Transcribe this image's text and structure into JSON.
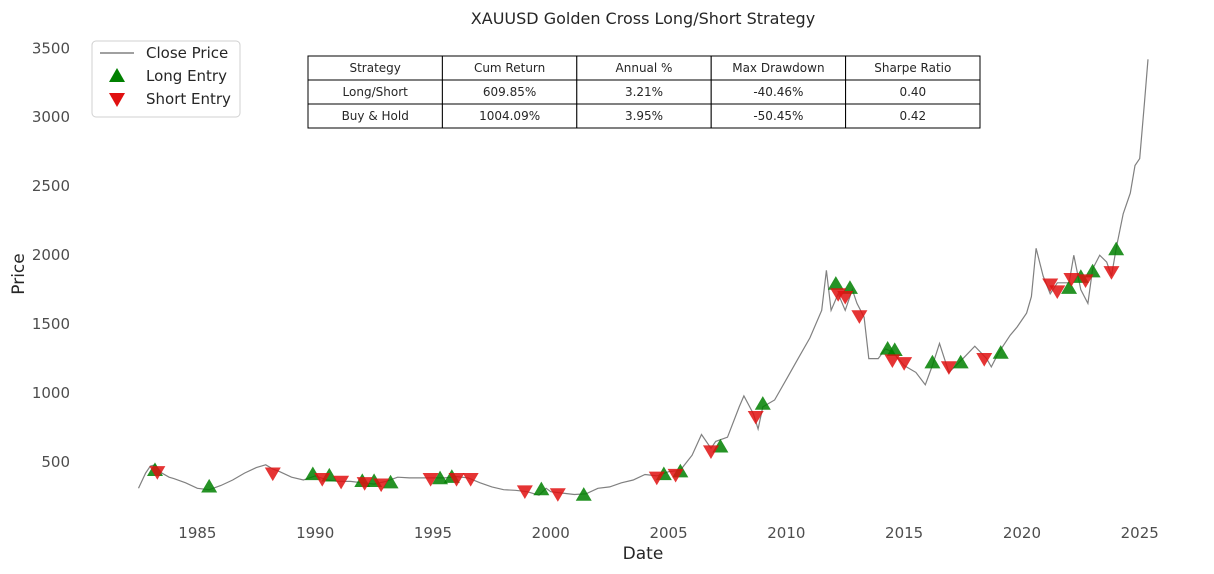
{
  "chart_data": {
    "type": "line",
    "title": "XAUUSD Golden Cross Long/Short Strategy",
    "xlabel": "Date",
    "ylabel": "Price",
    "xlim": [
      1981.8,
      2026.2
    ],
    "ylim": [
      80,
      3560
    ],
    "x_ticks": [
      1985,
      1990,
      1995,
      2000,
      2005,
      2010,
      2015,
      2020,
      2025
    ],
    "y_ticks": [
      500,
      1000,
      1500,
      2000,
      2500,
      3000,
      3500
    ],
    "grid": false,
    "legend": {
      "placement": "top-left",
      "entries": [
        {
          "label": "Close Price",
          "marker": "line",
          "color": "#808080"
        },
        {
          "label": "Long Entry",
          "marker": "triangle-up",
          "color": "#008000"
        },
        {
          "label": "Short Entry",
          "marker": "triangle-down",
          "color": "#e01010"
        }
      ]
    },
    "series": [
      {
        "name": "Close Price",
        "color": "#808080",
        "points": [
          [
            1982.5,
            310
          ],
          [
            1982.8,
            420
          ],
          [
            1983.0,
            470
          ],
          [
            1983.2,
            480
          ],
          [
            1983.5,
            420
          ],
          [
            1983.8,
            390
          ],
          [
            1984.0,
            380
          ],
          [
            1984.5,
            350
          ],
          [
            1985.0,
            310
          ],
          [
            1985.5,
            300
          ],
          [
            1986.0,
            330
          ],
          [
            1986.5,
            370
          ],
          [
            1987.0,
            420
          ],
          [
            1987.5,
            460
          ],
          [
            1987.9,
            480
          ],
          [
            1988.2,
            450
          ],
          [
            1988.5,
            430
          ],
          [
            1989.0,
            390
          ],
          [
            1989.5,
            370
          ],
          [
            1990.0,
            400
          ],
          [
            1990.5,
            370
          ],
          [
            1991.0,
            360
          ],
          [
            1991.5,
            360
          ],
          [
            1992.0,
            350
          ],
          [
            1992.5,
            340
          ],
          [
            1993.0,
            360
          ],
          [
            1993.5,
            390
          ],
          [
            1994.0,
            385
          ],
          [
            1994.5,
            385
          ],
          [
            1995.0,
            385
          ],
          [
            1995.5,
            385
          ],
          [
            1996.0,
            395
          ],
          [
            1996.5,
            385
          ],
          [
            1997.0,
            350
          ],
          [
            1997.5,
            320
          ],
          [
            1998.0,
            300
          ],
          [
            1998.5,
            295
          ],
          [
            1999.0,
            285
          ],
          [
            1999.5,
            260
          ],
          [
            1999.8,
            310
          ],
          [
            2000.0,
            285
          ],
          [
            2000.5,
            275
          ],
          [
            2001.0,
            265
          ],
          [
            2001.5,
            270
          ],
          [
            2002.0,
            310
          ],
          [
            2002.5,
            320
          ],
          [
            2003.0,
            350
          ],
          [
            2003.5,
            370
          ],
          [
            2004.0,
            410
          ],
          [
            2004.5,
            400
          ],
          [
            2005.0,
            430
          ],
          [
            2005.5,
            440
          ],
          [
            2006.0,
            550
          ],
          [
            2006.4,
            700
          ],
          [
            2006.8,
            600
          ],
          [
            2007.0,
            650
          ],
          [
            2007.5,
            680
          ],
          [
            2008.0,
            900
          ],
          [
            2008.2,
            980
          ],
          [
            2008.6,
            850
          ],
          [
            2008.8,
            740
          ],
          [
            2009.0,
            900
          ],
          [
            2009.5,
            950
          ],
          [
            2010.0,
            1100
          ],
          [
            2010.5,
            1250
          ],
          [
            2011.0,
            1400
          ],
          [
            2011.5,
            1600
          ],
          [
            2011.7,
            1890
          ],
          [
            2011.9,
            1600
          ],
          [
            2012.2,
            1720
          ],
          [
            2012.5,
            1600
          ],
          [
            2012.8,
            1750
          ],
          [
            2013.0,
            1650
          ],
          [
            2013.3,
            1550
          ],
          [
            2013.5,
            1250
          ],
          [
            2013.9,
            1250
          ],
          [
            2014.2,
            1320
          ],
          [
            2014.5,
            1300
          ],
          [
            2015.0,
            1200
          ],
          [
            2015.5,
            1150
          ],
          [
            2015.9,
            1060
          ],
          [
            2016.2,
            1200
          ],
          [
            2016.5,
            1360
          ],
          [
            2016.9,
            1150
          ],
          [
            2017.5,
            1250
          ],
          [
            2018.0,
            1340
          ],
          [
            2018.5,
            1250
          ],
          [
            2018.7,
            1190
          ],
          [
            2019.0,
            1290
          ],
          [
            2019.5,
            1420
          ],
          [
            2019.8,
            1480
          ],
          [
            2020.2,
            1580
          ],
          [
            2020.4,
            1700
          ],
          [
            2020.6,
            2050
          ],
          [
            2020.9,
            1850
          ],
          [
            2021.2,
            1720
          ],
          [
            2021.5,
            1800
          ],
          [
            2022.0,
            1800
          ],
          [
            2022.2,
            2000
          ],
          [
            2022.5,
            1750
          ],
          [
            2022.8,
            1650
          ],
          [
            2023.0,
            1900
          ],
          [
            2023.3,
            2000
          ],
          [
            2023.6,
            1950
          ],
          [
            2023.8,
            1850
          ],
          [
            2024.0,
            2050
          ],
          [
            2024.3,
            2300
          ],
          [
            2024.6,
            2450
          ],
          [
            2024.8,
            2650
          ],
          [
            2025.0,
            2700
          ],
          [
            2025.2,
            3100
          ],
          [
            2025.35,
            3420
          ]
        ]
      }
    ],
    "long_entries": [
      [
        1983.2,
        440
      ],
      [
        1985.5,
        320
      ],
      [
        1989.9,
        410
      ],
      [
        1990.6,
        400
      ],
      [
        1992.0,
        360
      ],
      [
        1992.5,
        360
      ],
      [
        1993.2,
        350
      ],
      [
        1995.3,
        380
      ],
      [
        1995.8,
        390
      ],
      [
        1999.6,
        300
      ],
      [
        2001.4,
        260
      ],
      [
        2004.8,
        410
      ],
      [
        2005.5,
        430
      ],
      [
        2007.2,
        610
      ],
      [
        2009.0,
        920
      ],
      [
        2012.1,
        1790
      ],
      [
        2012.7,
        1760
      ],
      [
        2014.3,
        1320
      ],
      [
        2014.6,
        1310
      ],
      [
        2016.2,
        1220
      ],
      [
        2017.4,
        1220
      ],
      [
        2019.1,
        1290
      ],
      [
        2022.0,
        1760
      ],
      [
        2022.5,
        1840
      ],
      [
        2023.0,
        1880
      ],
      [
        2024.0,
        2040
      ]
    ],
    "short_entries": [
      [
        1983.3,
        430
      ],
      [
        1988.2,
        420
      ],
      [
        1990.3,
        380
      ],
      [
        1991.1,
        360
      ],
      [
        1992.1,
        350
      ],
      [
        1992.8,
        340
      ],
      [
        1994.9,
        380
      ],
      [
        1996.0,
        380
      ],
      [
        1996.6,
        380
      ],
      [
        1998.9,
        290
      ],
      [
        2000.3,
        270
      ],
      [
        2004.5,
        390
      ],
      [
        2005.3,
        410
      ],
      [
        2006.8,
        580
      ],
      [
        2008.7,
        830
      ],
      [
        2012.2,
        1720
      ],
      [
        2012.5,
        1700
      ],
      [
        2013.1,
        1560
      ],
      [
        2014.5,
        1240
      ],
      [
        2015.0,
        1220
      ],
      [
        2016.9,
        1190
      ],
      [
        2018.4,
        1250
      ],
      [
        2021.2,
        1790
      ],
      [
        2021.5,
        1740
      ],
      [
        2022.1,
        1830
      ],
      [
        2022.7,
        1820
      ],
      [
        2023.8,
        1880
      ]
    ],
    "table": {
      "columns": [
        "Strategy",
        "Cum Return",
        "Annual %",
        "Max Drawdown",
        "Sharpe Ratio"
      ],
      "rows": [
        [
          "Long/Short",
          "609.85%",
          "3.21%",
          "-40.46%",
          "0.40"
        ],
        [
          "Buy & Hold",
          "1004.09%",
          "3.95%",
          "-50.45%",
          "0.42"
        ]
      ]
    }
  }
}
